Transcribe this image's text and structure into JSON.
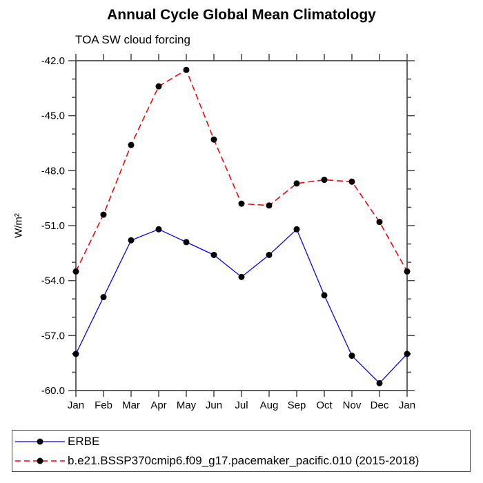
{
  "header": {
    "title": "Annual Cycle Global Mean Climatology",
    "subtitle": "TOA SW cloud forcing"
  },
  "chart_data": {
    "type": "line",
    "title": "Annual Cycle Global Mean Climatology",
    "subtitle": "TOA SW cloud forcing",
    "xlabel": "",
    "ylabel": "W/m²",
    "categories": [
      "Jan",
      "Feb",
      "Mar",
      "Apr",
      "May",
      "Jun",
      "Jul",
      "Aug",
      "Sep",
      "Oct",
      "Nov",
      "Dec",
      "Jan"
    ],
    "ylim": [
      -60.0,
      -42.0
    ],
    "y_major_ticks": [
      -42.0,
      -45.0,
      -48.0,
      -51.0,
      -54.0,
      -57.0,
      -60.0
    ],
    "y_tick_labels": [
      "-42.0",
      "-45.0",
      "-48.0",
      "-51.0",
      "-54.0",
      "-57.0",
      "-60.0"
    ],
    "y_minor_interval": 1.0,
    "grid": false,
    "legend_position": "bottom",
    "marker": "filled-circle",
    "marker_color": "#000000",
    "series": [
      {
        "name": "ERBE",
        "color": "#0000ff",
        "line_style": "solid",
        "values": [
          -58.0,
          -54.9,
          -51.8,
          -51.2,
          -51.9,
          -52.6,
          -53.8,
          -52.6,
          -51.2,
          -54.8,
          -58.1,
          -59.6,
          -58.0
        ]
      },
      {
        "name": "b.e21.BSSP370cmip6.f09_g17.pacemaker_pacific.010 (2015-2018)",
        "color": "#ff0000",
        "line_style": "dashed",
        "values": [
          -53.5,
          -50.4,
          -46.6,
          -43.4,
          -42.5,
          -46.3,
          -49.8,
          -49.9,
          -48.7,
          -48.5,
          -48.6,
          -50.8,
          -53.5
        ]
      }
    ]
  },
  "colors": {
    "axis": "#444444",
    "background": "#ffffff",
    "series_blue": "#0000ff",
    "series_red": "#ff0000",
    "marker": "#000000"
  }
}
